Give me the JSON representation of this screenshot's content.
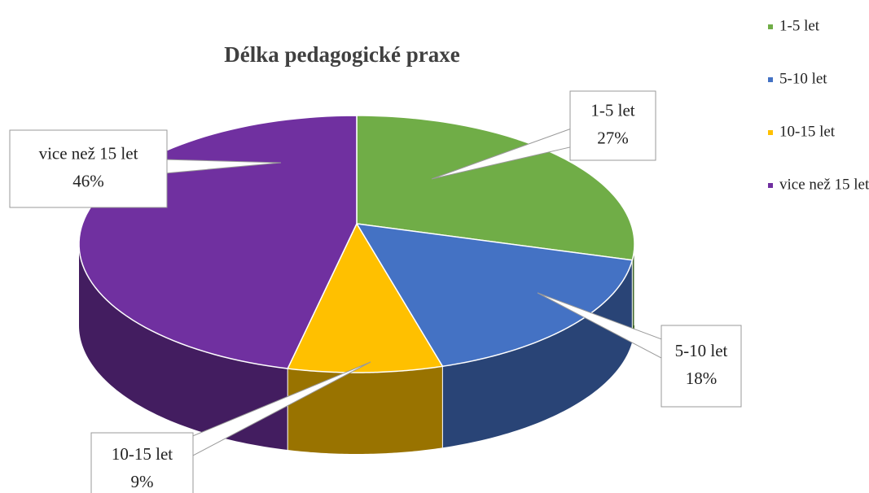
{
  "chart_data": {
    "type": "pie3d",
    "title": "Délka pedagogické praxe",
    "categories": [
      "1-5 let",
      "5-10 let",
      "10-15 let",
      "vice než 15 let"
    ],
    "values": [
      27,
      18,
      9,
      46
    ],
    "value_labels": [
      "27%",
      "18%",
      "9%",
      "46%"
    ],
    "colors": [
      "#70ad47",
      "#4472c4",
      "#ffc000",
      "#7030a0"
    ],
    "legend": "top-right"
  }
}
